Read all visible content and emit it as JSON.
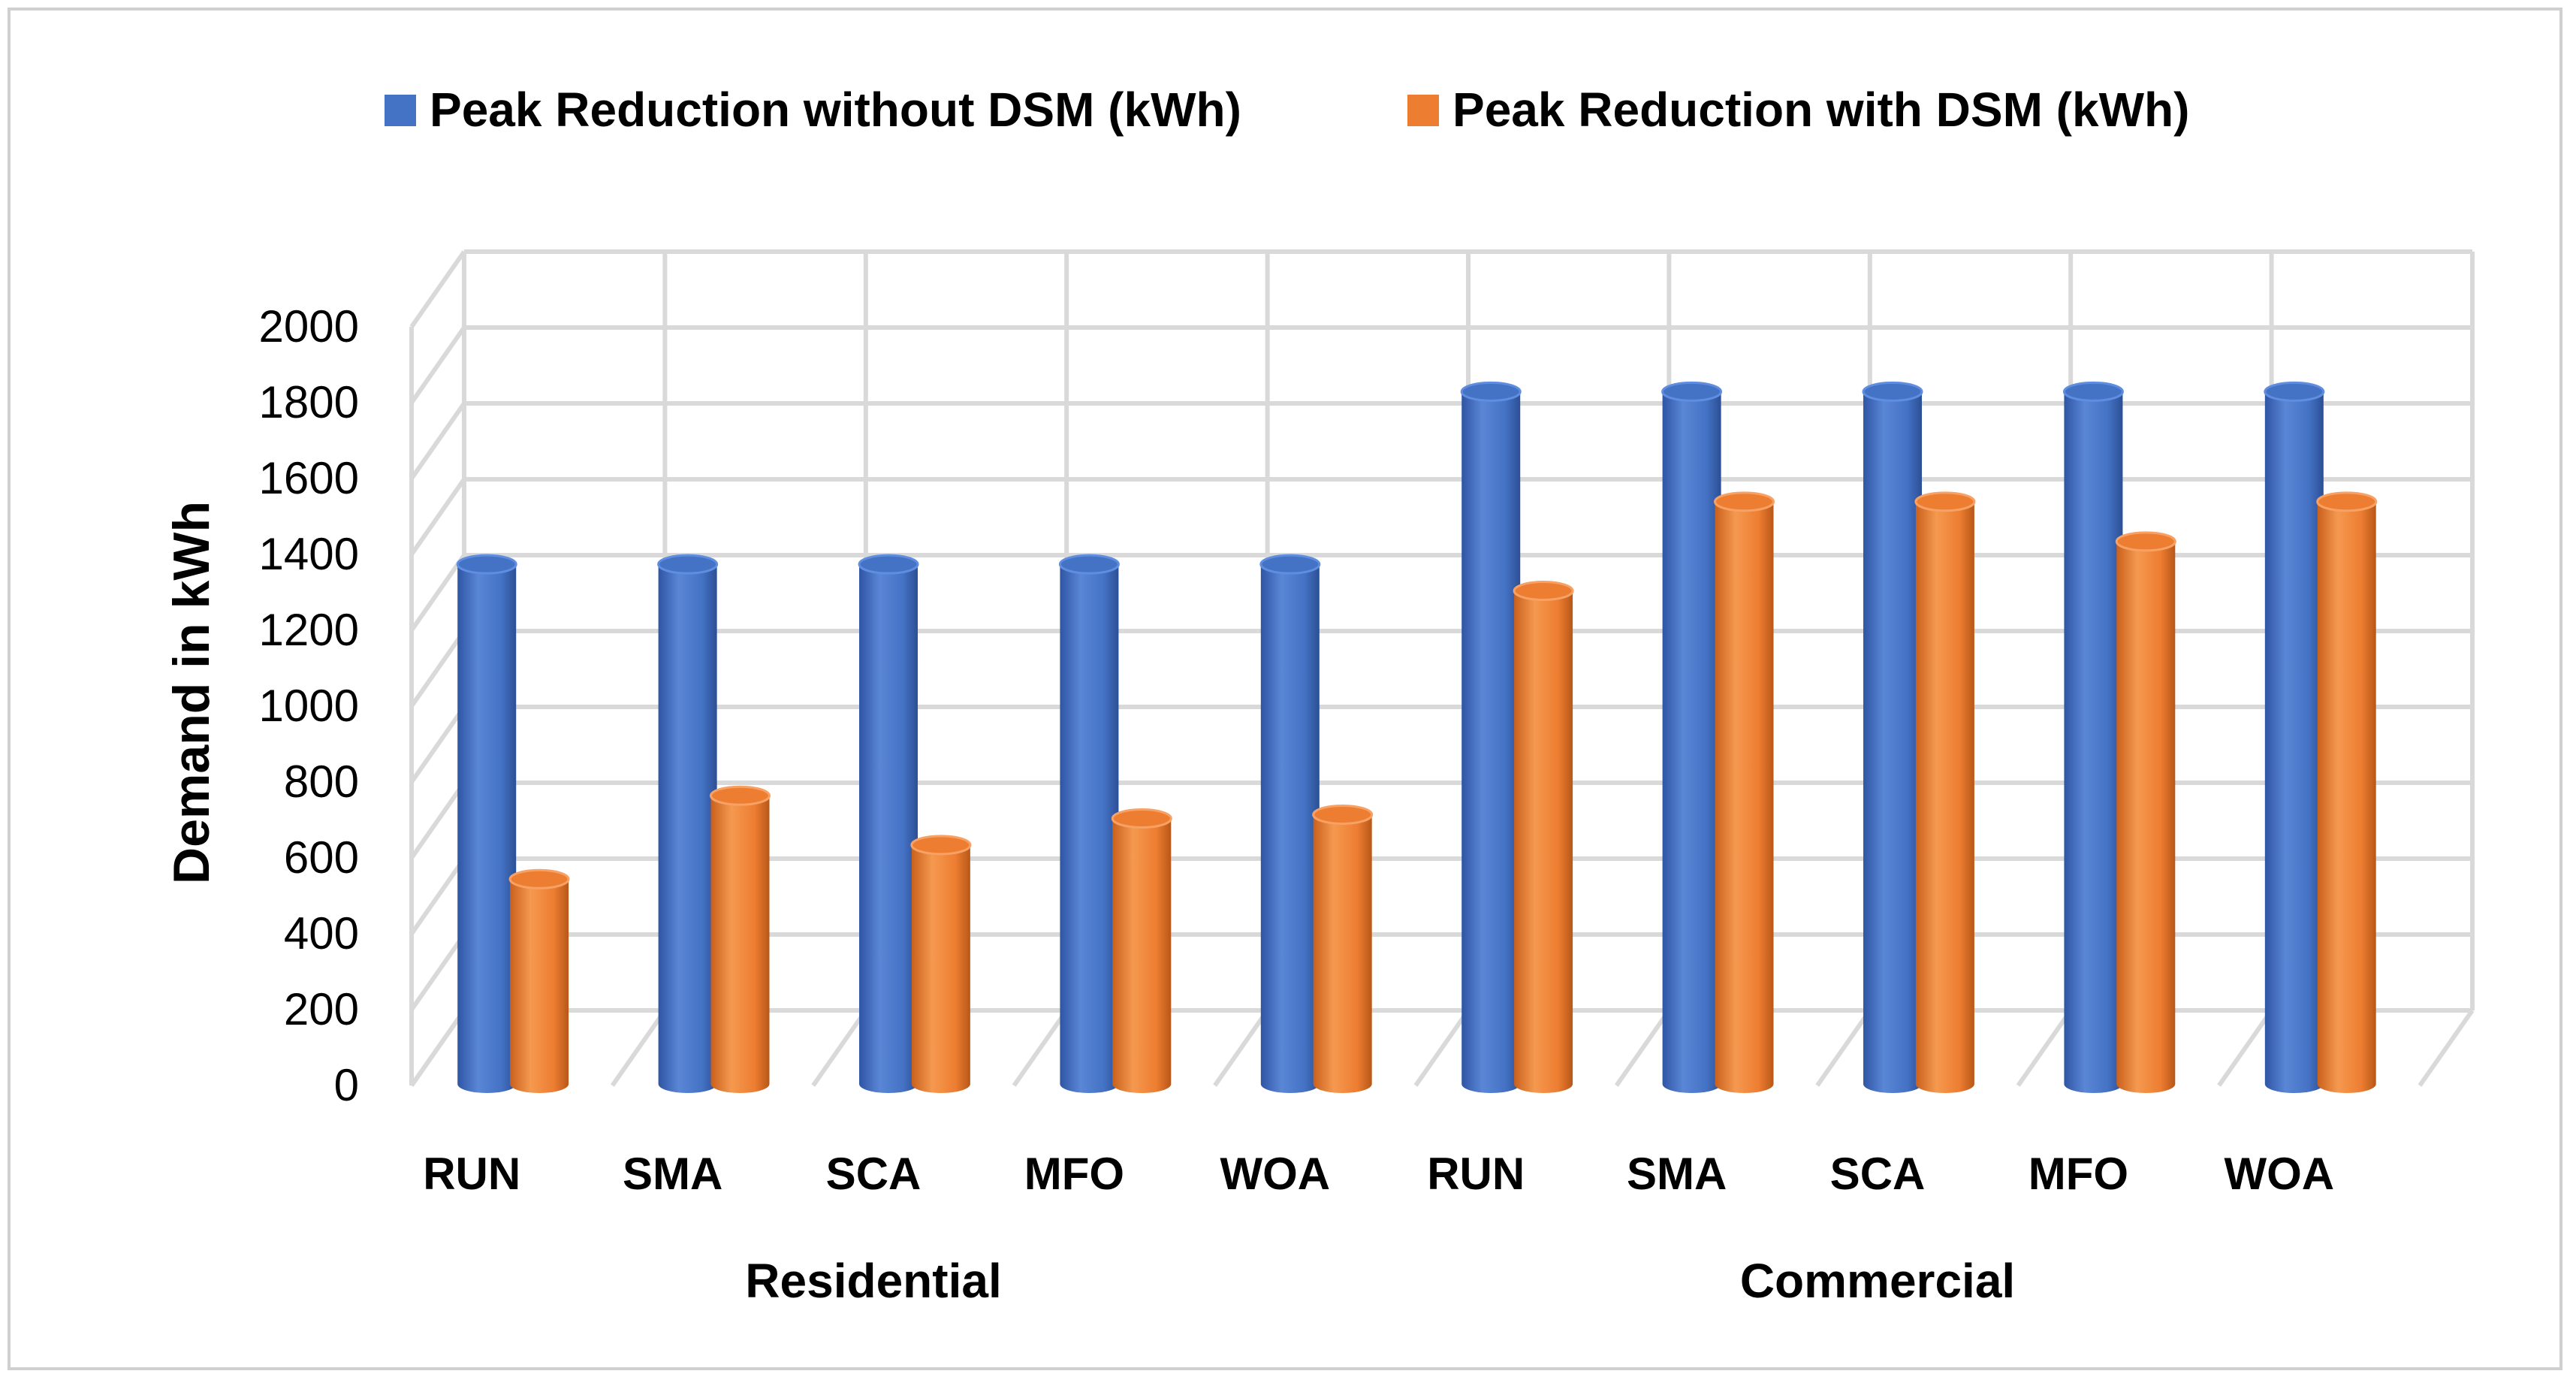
{
  "chart_data": {
    "type": "bar",
    "style": "3d-cylinder",
    "title": "",
    "xlabel": "",
    "ylabel": "Demand in kWh",
    "ylim": [
      0,
      2000
    ],
    "yticks": [
      0,
      200,
      400,
      600,
      800,
      1000,
      1200,
      1400,
      1600,
      1800,
      2000
    ],
    "grid": true,
    "legend_position": "top",
    "categories": [
      "RUN",
      "SMA",
      "SCA",
      "MFO",
      "WOA",
      "RUN",
      "SMA",
      "SCA",
      "MFO",
      "WOA"
    ],
    "groups": [
      {
        "label": "Residential",
        "start": 0,
        "count": 5
      },
      {
        "label": "Commercial",
        "start": 5,
        "count": 5
      }
    ],
    "series": [
      {
        "name": "Peak Reduction without DSM (kWh)",
        "color": "#4472c4",
        "values": [
          1370,
          1370,
          1370,
          1370,
          1370,
          1825,
          1825,
          1825,
          1825,
          1825
        ]
      },
      {
        "name": "Peak Reduction with DSM (kWh)",
        "color": "#ed7d31",
        "values": [
          540,
          760,
          630,
          700,
          710,
          1300,
          1535,
          1535,
          1430,
          1535
        ]
      }
    ]
  }
}
